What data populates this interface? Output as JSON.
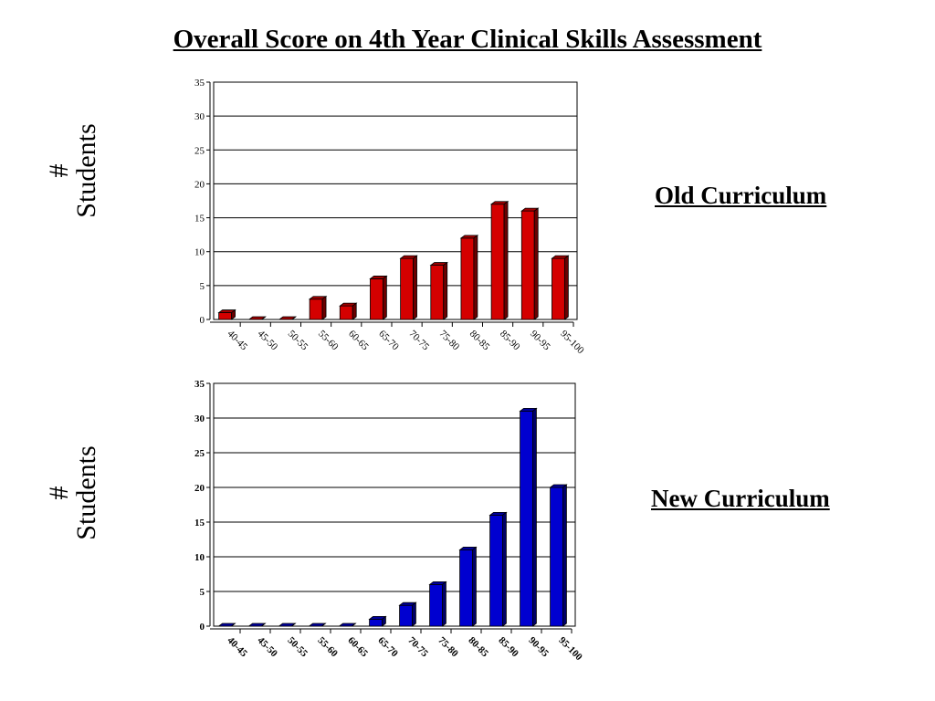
{
  "title": "Overall Score on 4th Year Clinical Skills Assessment",
  "y_axis_label": [
    "#",
    "Students"
  ],
  "chart_data": [
    {
      "type": "bar",
      "name": "Old Curriculum",
      "categories": [
        "40-45",
        "45-50",
        "50-55",
        "55-60",
        "60-65",
        "65-70",
        "70-75",
        "75-80",
        "80-85",
        "85-90",
        "90-95",
        "95-100"
      ],
      "values": [
        1,
        0,
        0,
        3,
        2,
        6,
        9,
        8,
        12,
        17,
        16,
        9
      ],
      "ylim": [
        0,
        35
      ],
      "yticks": [
        0,
        5,
        10,
        15,
        20,
        25,
        30,
        35
      ],
      "grid": true,
      "color": "#d40000",
      "ylabel": "# Students"
    },
    {
      "type": "bar",
      "name": "New Curriculum",
      "categories": [
        "40-45",
        "45-50",
        "50-55",
        "55-60",
        "60-65",
        "65-70",
        "70-75",
        "75-80",
        "80-85",
        "85-90",
        "90-95",
        "95-100"
      ],
      "values": [
        0,
        0,
        0,
        0,
        0,
        1,
        3,
        6,
        11,
        16,
        31,
        20
      ],
      "ylim": [
        0,
        35
      ],
      "yticks": [
        0,
        5,
        10,
        15,
        20,
        25,
        30,
        35
      ],
      "grid": true,
      "color": "#0000d0",
      "ylabel": "# Students"
    }
  ]
}
